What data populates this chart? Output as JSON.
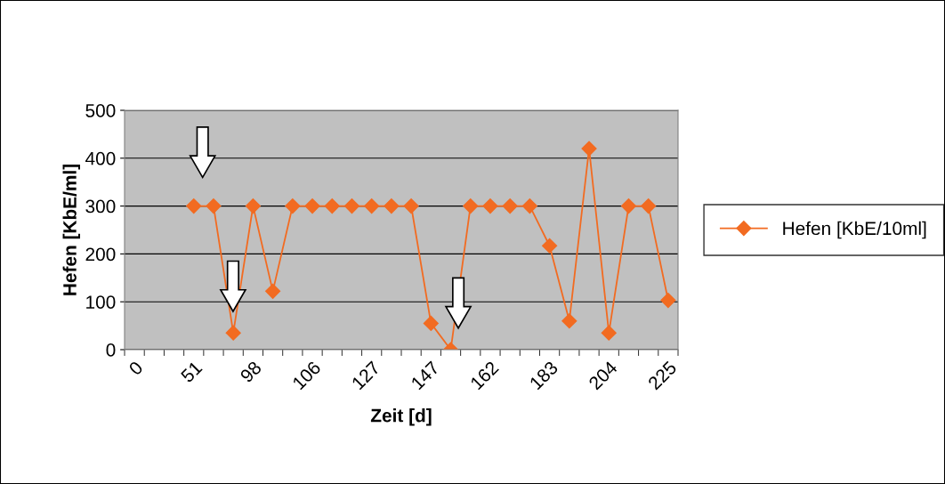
{
  "chart_data": {
    "type": "line",
    "xlabel": "Zeit [d]",
    "ylabel": "Hefen [KbE/ml]",
    "categories": [
      "0",
      null,
      null,
      "51",
      null,
      null,
      "98",
      null,
      null,
      "106",
      null,
      null,
      "127",
      null,
      null,
      "147",
      null,
      null,
      "162",
      null,
      null,
      "183",
      null,
      null,
      "204",
      null,
      null,
      "225"
    ],
    "series": [
      {
        "name": "Hefen [KbE/10ml]",
        "color": "#f26b21",
        "values": [
          null,
          null,
          null,
          300,
          300,
          35,
          300,
          122,
          300,
          300,
          300,
          300,
          300,
          300,
          300,
          55,
          0,
          300,
          300,
          300,
          300,
          217,
          60,
          420,
          35,
          300,
          300,
          103
        ]
      }
    ],
    "ylim": [
      0,
      500
    ],
    "yticks": [
      0,
      100,
      200,
      300,
      400,
      500
    ],
    "grid": "y",
    "legend": "right",
    "marker": "diamond",
    "line_style": "solid"
  }
}
